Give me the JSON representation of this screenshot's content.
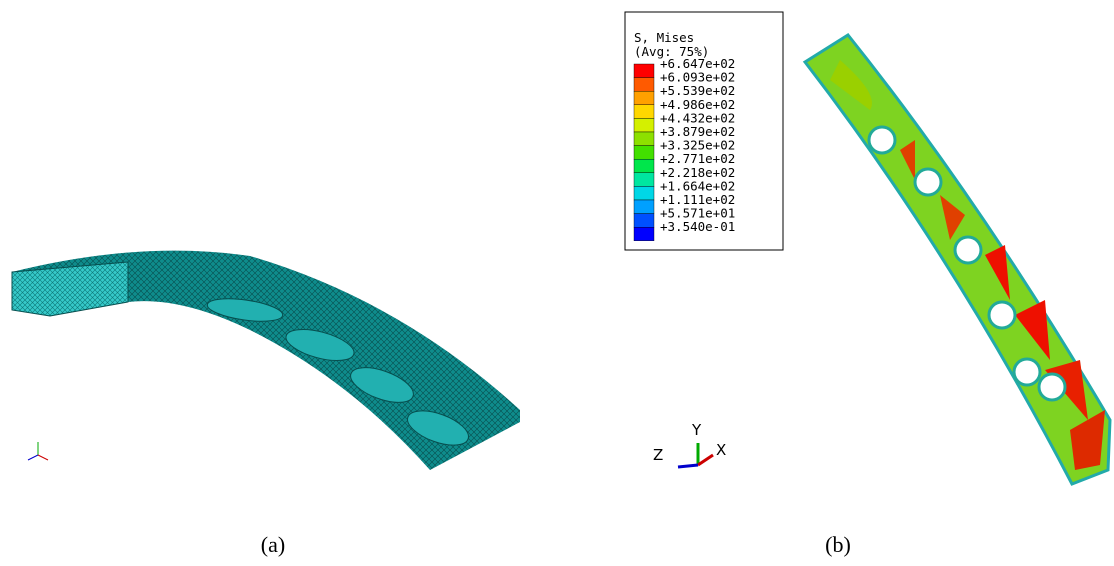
{
  "legend": {
    "title": "S, Mises",
    "subtitle": "(Avg: 75%)",
    "labels": [
      "+6.647e+02",
      "+6.093e+02",
      "+5.539e+02",
      "+4.986e+02",
      "+4.432e+02",
      "+3.879e+02",
      "+3.325e+02",
      "+2.771e+02",
      "+2.218e+02",
      "+1.664e+02",
      "+1.111e+02",
      "+5.571e+01",
      "+3.540e-01"
    ],
    "colors": [
      "#ff0000",
      "#ff5a00",
      "#ffa000",
      "#ffd700",
      "#d4f000",
      "#8de000",
      "#42e000",
      "#00e64b",
      "#00e6a0",
      "#00d7e6",
      "#00a0ff",
      "#0050ff",
      "#0000ff"
    ]
  },
  "triad": {
    "y": "Y",
    "z": "Z",
    "x": "X"
  },
  "captions": [
    "(a)",
    "(b)"
  ]
}
